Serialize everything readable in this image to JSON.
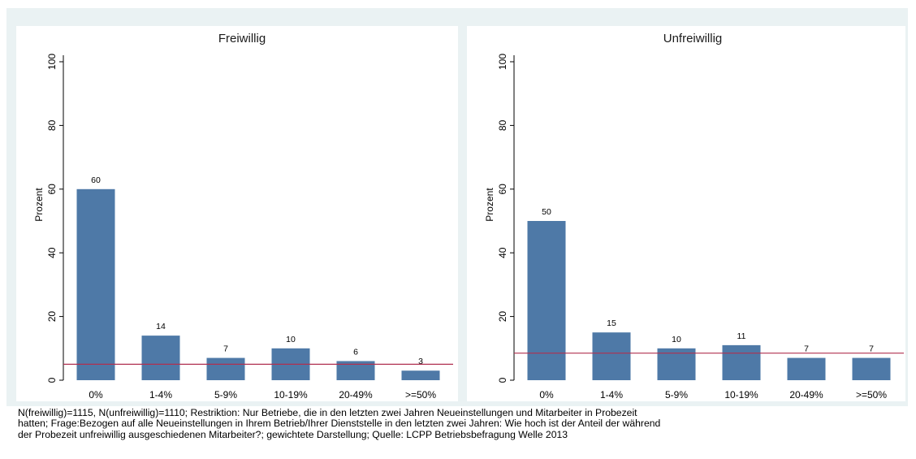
{
  "page_title": "",
  "chart_data": {
    "type": "bar",
    "categories": [
      "0%",
      "1-4%",
      "5-9%",
      "10-19%",
      "20-49%",
      ">=50%"
    ],
    "ylabel": "Prozent",
    "ylim": [
      0,
      100
    ],
    "yticks": [
      0,
      20,
      40,
      60,
      80,
      100
    ],
    "grid": false,
    "bar_color": "#4e79a7",
    "reference_line_color": "#b03050",
    "panels": [
      {
        "title": "Freiwillig",
        "values": [
          60,
          14,
          7,
          10,
          6,
          3
        ],
        "labels": [
          "60",
          "14",
          "7",
          "10",
          "6",
          "3"
        ],
        "reference_line": 5
      },
      {
        "title": "Unfreiwillig",
        "values": [
          50,
          15,
          10,
          11,
          7,
          7
        ],
        "labels": [
          "50",
          "15",
          "10",
          "11",
          "7",
          "7"
        ],
        "reference_line": 8.5
      }
    ]
  },
  "note": {
    "lines": [
      "N(freiwillig)=1115, N(unfreiwillig)=1110; Restriktion: Nur Betriebe, die in den letzten zwei Jahren Neueinstellungen und Mitarbeiter in Probezeit",
      "hatten; Frage:Bezogen auf alle Neueinstellungen in Ihrem Betrieb/Ihrer Dienststelle in den letzten zwei Jahren: Wie hoch ist der Anteil der während",
      "der Probezeit unfreiwillig ausgeschiedenen Mitarbeiter?; gewichtete Darstellung; Quelle: LCPP Betriebsbefragung Welle 2013"
    ]
  }
}
